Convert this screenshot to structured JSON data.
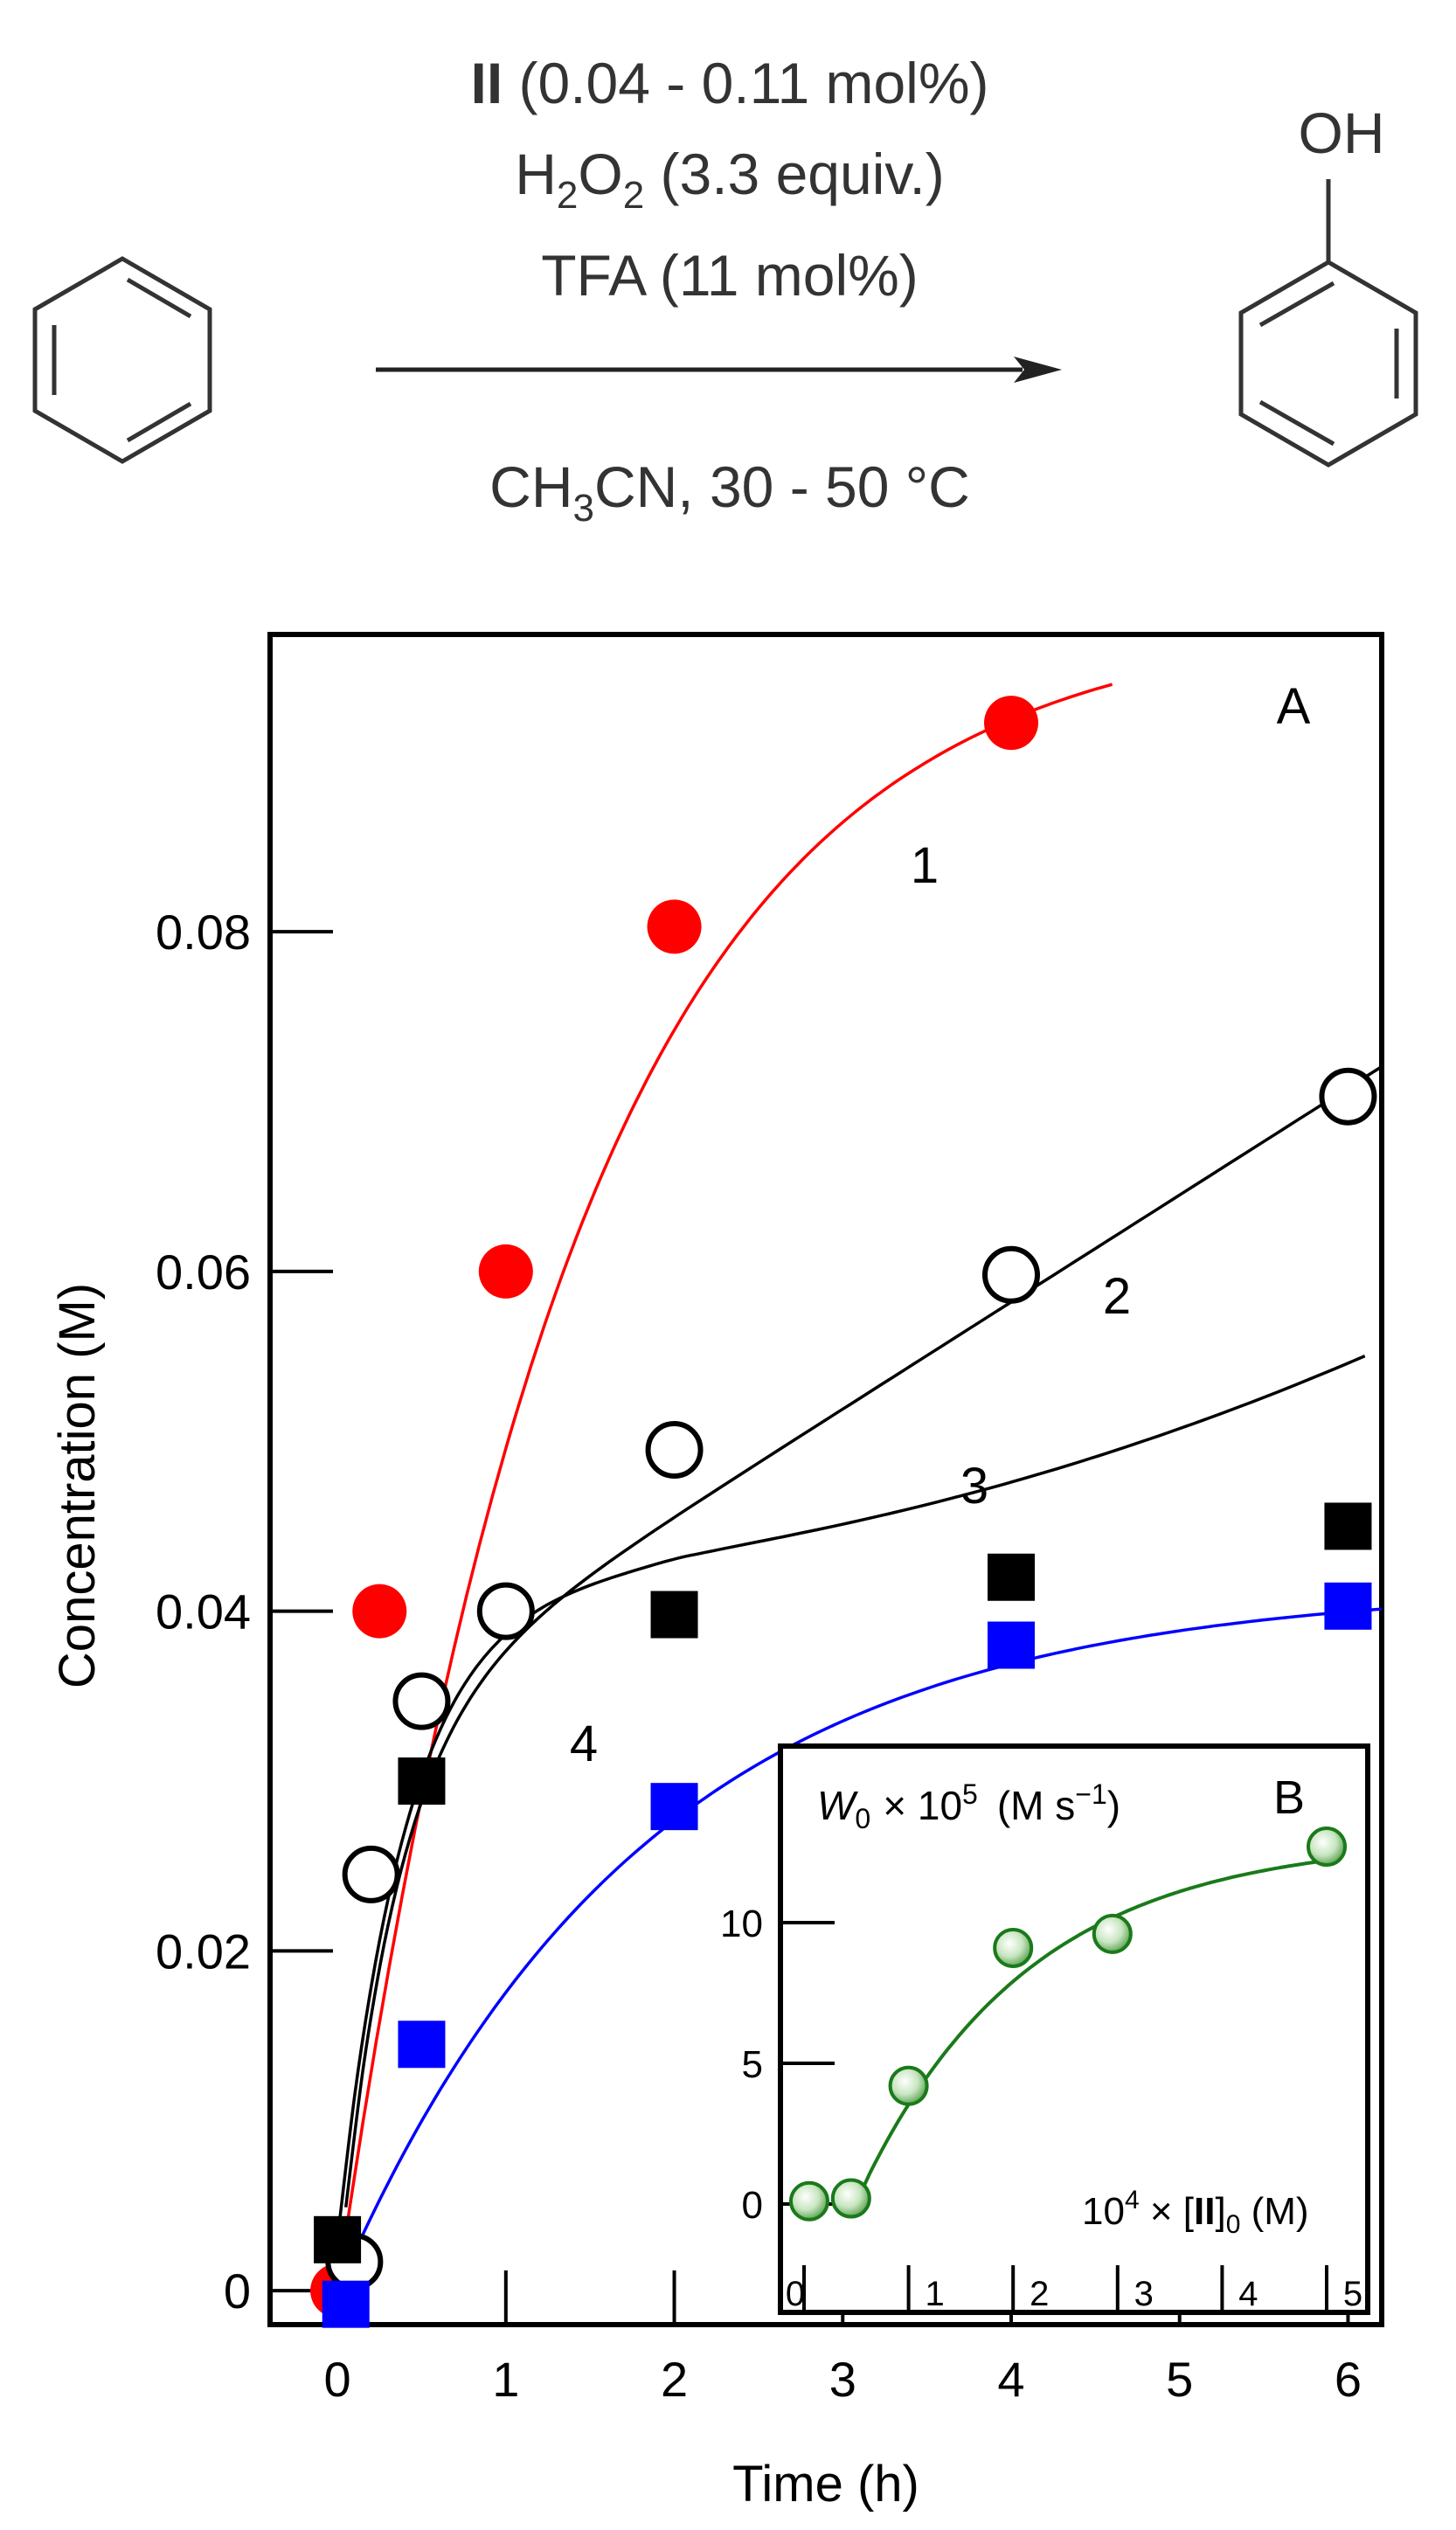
{
  "scheme": {
    "catalyst": "II",
    "catalyst_amount": " (0.04 - 0.11 mol%)",
    "oxidant": "H",
    "oxidant_sub1": "2",
    "oxidant_o": "O",
    "oxidant_sub2": "2",
    "oxidant_equiv": " (3.3 equiv.)",
    "acid": "TFA (11 mol%)",
    "solvent_a": "CH",
    "solvent_sub": "3",
    "solvent_b": "CN, 30 - 50 °C",
    "product_group": "OH"
  },
  "chart_data": [
    {
      "panel": "A",
      "type": "scatter",
      "xlabel": "Time (h)",
      "ylabel": "Concentration  (M)",
      "x_ticks": [
        "0",
        "1",
        "2",
        "3",
        "4",
        "5",
        "6"
      ],
      "y_ticks": [
        "0",
        "0.02",
        "0.04",
        "0.06",
        "0.08"
      ],
      "xlim": [
        -0.4,
        6.2
      ],
      "ylim": [
        -0.002,
        0.0975
      ],
      "series": [
        {
          "name": "1",
          "marker": "filled-circle",
          "color": "#ff0000",
          "x": [
            0,
            0.25,
            1,
            2,
            4
          ],
          "y": [
            0.0,
            0.04,
            0.06,
            0.0803,
            0.0923
          ]
        },
        {
          "name": "2",
          "marker": "open-circle",
          "color": "#000000",
          "x": [
            0.1,
            0.2,
            0.5,
            1,
            2,
            4,
            6
          ],
          "y": [
            0.0017,
            0.0245,
            0.0347,
            0.04,
            0.0495,
            0.0598,
            0.0703
          ]
        },
        {
          "name": "3",
          "marker": "filled-square",
          "color": "#000000",
          "x": [
            0,
            0.5,
            2,
            4,
            6
          ],
          "y": [
            0.003,
            0.03,
            0.0398,
            0.042,
            0.045
          ]
        },
        {
          "name": "4",
          "marker": "filled-square",
          "color": "#0000ff",
          "x": [
            0.05,
            0.5,
            2,
            4,
            6
          ],
          "y": [
            -0.0008,
            0.0145,
            0.0285,
            0.038,
            0.0403
          ]
        }
      ]
    },
    {
      "panel": "B",
      "type": "scatter",
      "ylabel_main": "W",
      "ylabel_sub": "0",
      "ylabel_rest": "× 10",
      "ylabel_sup": "5",
      "ylabel_unit": "(M s",
      "ylabel_unit_sup": "−1",
      "ylabel_close": ")",
      "xlabel_prefix": "10",
      "xlabel_sup": "4",
      "xlabel_mid": " × [",
      "xlabel_bold": "II",
      "xlabel_close": "]",
      "xlabel_sub": "0",
      "xlabel_unit": " (M)",
      "x_ticks": [
        "0",
        "1",
        "2",
        "3",
        "4",
        "5"
      ],
      "y_ticks": [
        "0",
        "5",
        "10"
      ],
      "xlim": [
        -0.1,
        5.3
      ],
      "ylim": [
        -0.3,
        14.5
      ],
      "series": [
        {
          "marker": "open-circle",
          "color": "#1a7a1a",
          "x": [
            0.05,
            0.45,
            1.0,
            2.0,
            2.95,
            5.0
          ],
          "y": [
            0.1,
            0.2,
            4.2,
            9.1,
            9.6,
            12.7
          ]
        }
      ]
    }
  ]
}
